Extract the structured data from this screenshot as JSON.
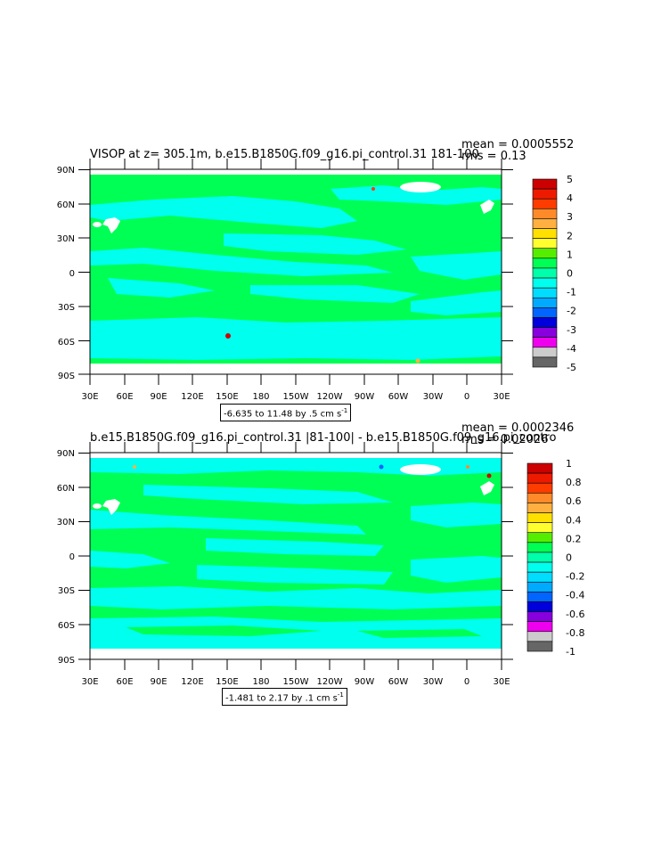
{
  "panels": [
    {
      "title": "VISOP at z= 305.1m, b.e15.B1850G.f09_g16.pi_control.31 181-100",
      "mean": "mean = 0.0005552",
      "rms": "rms = 0.13",
      "range_prefix": "-6.635 to 11.48 by .5 cm s",
      "range_exp": "-1",
      "colorbar_labels": [
        "5",
        "4",
        "3",
        "2",
        "1",
        "0",
        "-1",
        "-2",
        "-3",
        "-4",
        "-5"
      ]
    },
    {
      "title": "b.e15.B1850G.f09_g16.pi_control.31 |81-100| - b.e15.B1850G.f09_g16.pi_contro",
      "mean": "mean = 0.0002346",
      "rms": "rms = 0.02026",
      "range_prefix": "-1.481 to 2.17 by .1 cm s",
      "range_exp": "-1",
      "colorbar_labels": [
        "1",
        "0.8",
        "0.6",
        "0.4",
        "0.2",
        "0",
        "-0.2",
        "-0.4",
        "-0.6",
        "-0.8",
        "-1"
      ]
    }
  ],
  "lat_labels": [
    "90N",
    "60N",
    "30N",
    "0",
    "30S",
    "60S",
    "90S"
  ],
  "lon_labels": [
    "30E",
    "60E",
    "90E",
    "120E",
    "150E",
    "180",
    "150W",
    "120W",
    "90W",
    "60W",
    "30W",
    "0",
    "30E"
  ],
  "colors": {
    "green": "#00ff55",
    "cyan": "#00ffee",
    "colorbar": [
      "#cc0000",
      "#ee1a00",
      "#ff3c00",
      "#ff8a2a",
      "#ffb040",
      "#ffe000",
      "#ffff30",
      "#55ee00",
      "#00ff55",
      "#00ffaa",
      "#00ffee",
      "#00ddff",
      "#00aaff",
      "#0066ff",
      "#0000dd",
      "#8800dd",
      "#ee00ee",
      "#cccccc",
      "#666666"
    ]
  }
}
